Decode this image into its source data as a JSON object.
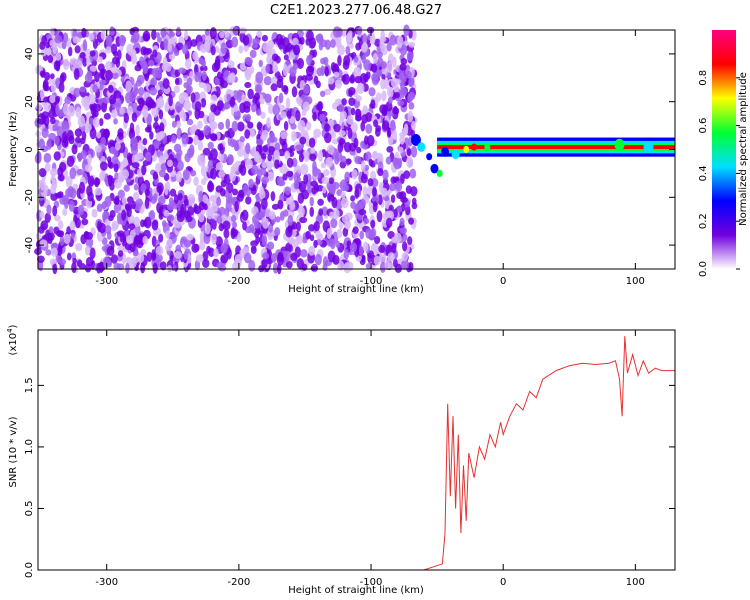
{
  "title": "C2E1.2023.277.06.48.G27",
  "chart_data": [
    {
      "type": "heatmap",
      "xlabel": "Height of straight line (km)",
      "ylabel": "Frequency (Hz)",
      "xlim": [
        -352,
        130
      ],
      "ylim": [
        -50,
        50
      ],
      "x_ticks": [
        -300,
        -200,
        -100,
        0,
        100
      ],
      "x_tick_labels": [
        "-300",
        "-200",
        "-100",
        "0",
        "100"
      ],
      "y_ticks": [
        -40,
        -20,
        0,
        20,
        40
      ],
      "y_tick_labels": [
        "-40",
        "-20",
        "0",
        "20",
        "40"
      ],
      "noise_region_x": [
        -352,
        -67
      ],
      "signal_frequency_hz": 1,
      "signal_onset_x": -70,
      "grid": false,
      "colorbar": {
        "label": "Normalized spectral amplitude",
        "range": [
          0,
          1
        ],
        "ticks": [
          0.0,
          0.2,
          0.4,
          0.6,
          0.8
        ],
        "tick_labels": [
          "0.0",
          "0.2",
          "0.4",
          "0.6",
          "0.8"
        ],
        "colormap": [
          "#ffffff",
          "#7000e0",
          "#0000ff",
          "#00e0ff",
          "#00ff30",
          "#ffff00",
          "#ff0000",
          "#ff0080"
        ]
      }
    },
    {
      "type": "line",
      "xlabel": "Height of straight line (km)",
      "ylabel": "SNR (10 * v/v)",
      "y_multiplier_label": "(x10",
      "y_multiplier_exp": "4",
      "xlim": [
        -352,
        130
      ],
      "ylim": [
        0,
        1.95
      ],
      "x_ticks": [
        -300,
        -200,
        -100,
        0,
        100
      ],
      "x_tick_labels": [
        "-300",
        "-200",
        "-100",
        "0",
        "100"
      ],
      "y_ticks": [
        0.0,
        0.5,
        1.0,
        1.5
      ],
      "y_tick_labels": [
        "0.0",
        "0.5",
        "1.0",
        "1.5"
      ],
      "line_color": "#e83030",
      "grid": false,
      "series": [
        {
          "x": [
            -352,
            -300,
            -250,
            -200,
            -150,
            -100,
            -60,
            -46,
            -44,
            -42,
            -40,
            -38,
            -36,
            -34,
            -32,
            -30,
            -28,
            -26,
            -22,
            -18,
            -14,
            -10,
            -6,
            -2,
            0,
            5,
            10,
            15,
            20,
            25,
            30,
            40,
            50,
            60,
            70,
            80,
            85,
            88,
            90,
            92,
            94,
            98,
            102,
            106,
            110,
            115,
            120,
            130
          ],
          "y": [
            0.0,
            0.0,
            0.0,
            0.0,
            0.0,
            0.0,
            0.0,
            0.05,
            0.3,
            1.35,
            0.6,
            1.25,
            0.5,
            1.1,
            0.3,
            0.85,
            0.4,
            0.95,
            0.75,
            1.0,
            0.9,
            1.1,
            1.0,
            1.2,
            1.1,
            1.25,
            1.35,
            1.3,
            1.45,
            1.4,
            1.55,
            1.62,
            1.66,
            1.68,
            1.67,
            1.68,
            1.7,
            1.55,
            1.25,
            1.9,
            1.6,
            1.75,
            1.58,
            1.7,
            1.6,
            1.64,
            1.62,
            1.62
          ]
        }
      ]
    }
  ]
}
